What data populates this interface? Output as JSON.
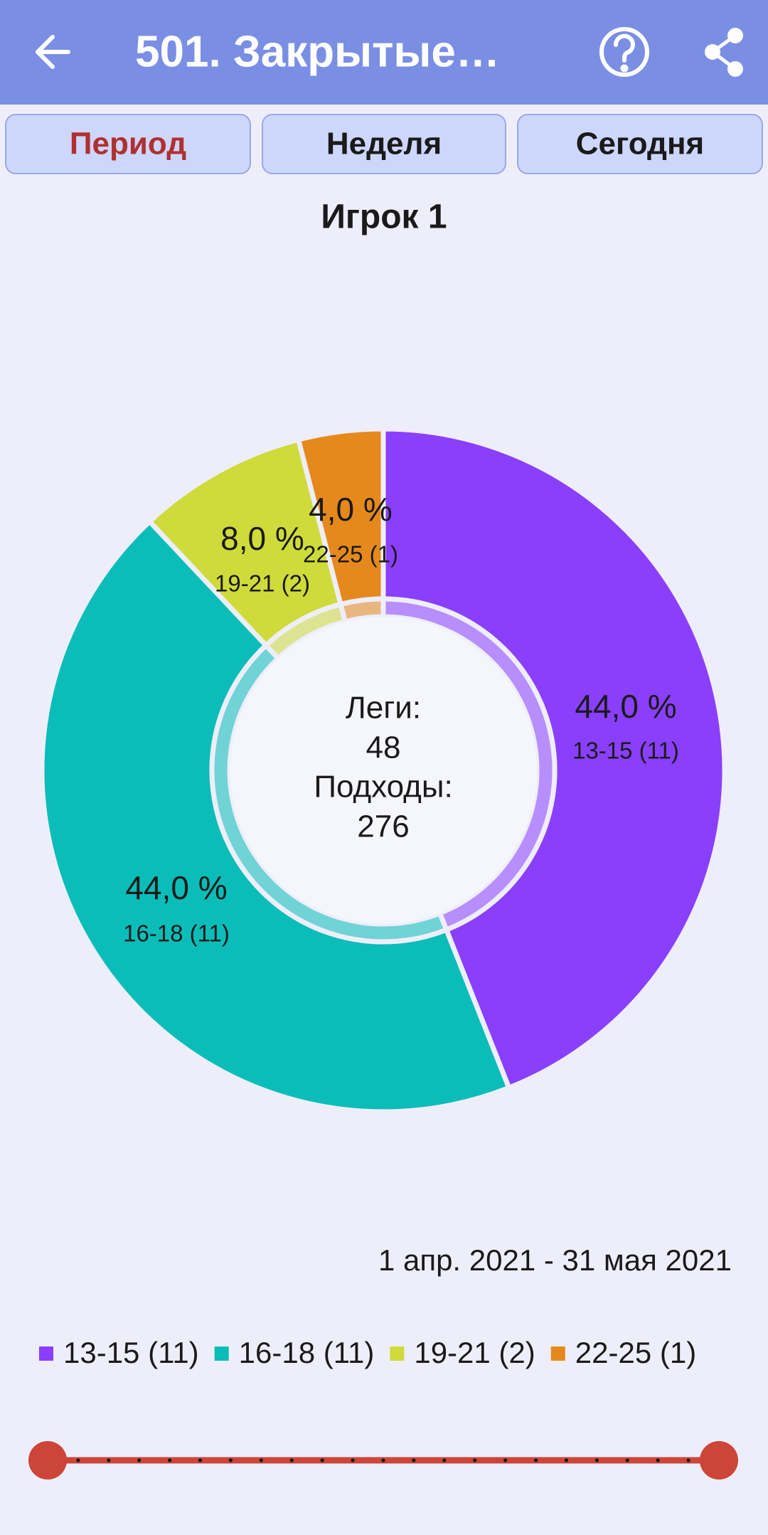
{
  "header": {
    "title": "501. Закрытые…"
  },
  "tabs": [
    "Период",
    "Неделя",
    "Сегодня"
  ],
  "chart_data": {
    "type": "pie",
    "title": "Игрок  1",
    "categories": [
      "13-15 (11)",
      "16-18 (11)",
      "19-21 (2)",
      "22-25 (1)"
    ],
    "values": [
      44,
      44,
      8,
      4
    ],
    "value_labels": [
      "44,0 %",
      "44,0 %",
      "8,0 %",
      "4,0 %"
    ],
    "colors": [
      "#8a3ffc",
      "#0abdb8",
      "#cfdb3a",
      "#e5891c"
    ],
    "annotations": [
      "Леги:",
      "48",
      "Подходы:",
      "276"
    ],
    "caption": "1 апр. 2021 - 31 мая 2021"
  }
}
